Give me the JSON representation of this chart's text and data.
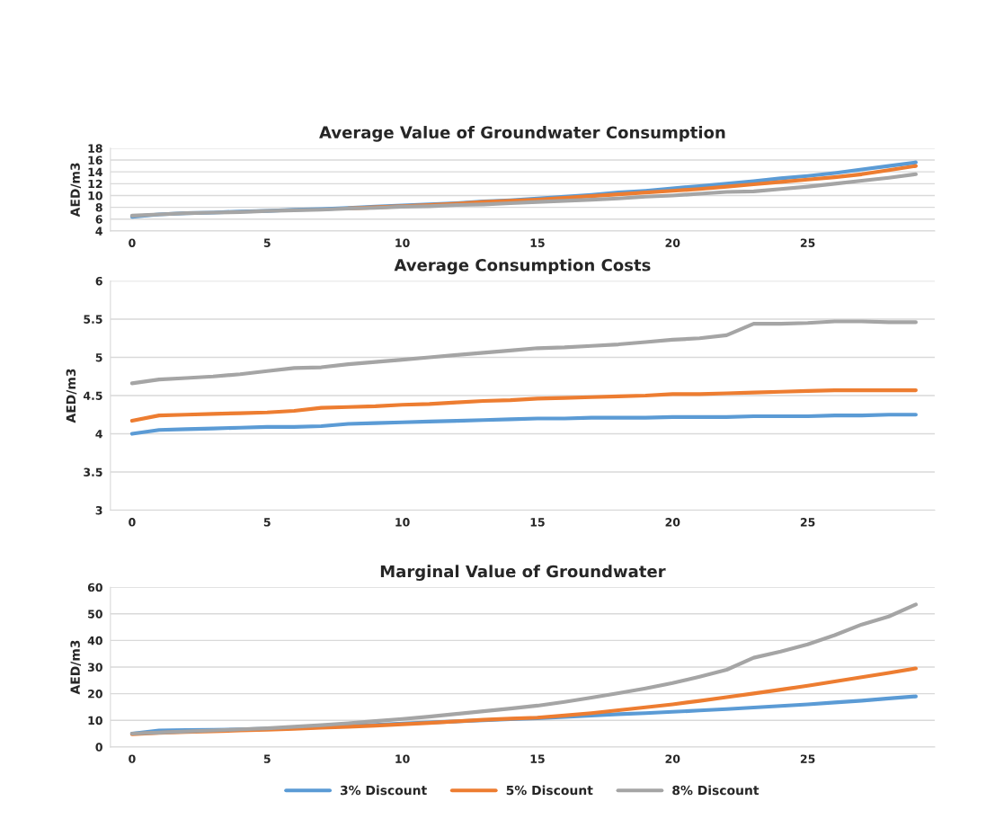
{
  "chart_data": [
    {
      "type": "line",
      "title": "Average Value of Groundwater Consumption",
      "ylabel": "AED/m3",
      "x": [
        0,
        1,
        2,
        3,
        4,
        5,
        6,
        7,
        8,
        9,
        10,
        11,
        12,
        13,
        14,
        15,
        16,
        17,
        18,
        19,
        20,
        21,
        22,
        23,
        24,
        25,
        26,
        27,
        28,
        29
      ],
      "xlim": [
        -0.8,
        29.7
      ],
      "xticks": [
        0,
        5,
        10,
        15,
        20,
        25
      ],
      "ylim": [
        4,
        18
      ],
      "yticks": [
        4,
        6,
        8,
        10,
        12,
        14,
        16,
        18
      ],
      "grid": "y",
      "legend": false,
      "marker": "none",
      "line_style": "solid",
      "series": [
        {
          "color": "#5b9bd5",
          "values": [
            6.4,
            6.8,
            7.0,
            7.1,
            7.3,
            7.4,
            7.6,
            7.7,
            7.9,
            8.1,
            8.3,
            8.5,
            8.7,
            9.0,
            9.2,
            9.5,
            9.8,
            10.1,
            10.5,
            10.8,
            11.2,
            11.6,
            12.0,
            12.4,
            12.9,
            13.3,
            13.8,
            14.4,
            15.0,
            15.6
          ]
        },
        {
          "color": "#ed7d31",
          "values": [
            null,
            null,
            null,
            null,
            null,
            null,
            null,
            null,
            7.8,
            8.0,
            8.2,
            8.4,
            8.6,
            8.9,
            9.1,
            9.3,
            9.6,
            9.9,
            10.2,
            10.5,
            10.8,
            11.1,
            11.5,
            11.9,
            12.3,
            12.7,
            13.1,
            13.6,
            14.3,
            15.0
          ]
        },
        {
          "color": "#a5a5a5",
          "values": [
            6.6,
            6.8,
            7.0,
            7.1,
            7.2,
            7.4,
            7.5,
            7.6,
            7.8,
            7.9,
            8.1,
            8.2,
            8.4,
            8.5,
            8.7,
            8.9,
            9.1,
            9.3,
            9.5,
            9.8,
            10.0,
            10.3,
            10.6,
            10.7,
            11.1,
            11.5,
            12.0,
            12.5,
            13.0,
            13.6
          ]
        }
      ]
    },
    {
      "type": "line",
      "title": "Average Consumption Costs",
      "ylabel": "AED/m3",
      "x": [
        0,
        1,
        2,
        3,
        4,
        5,
        6,
        7,
        8,
        9,
        10,
        11,
        12,
        13,
        14,
        15,
        16,
        17,
        18,
        19,
        20,
        21,
        22,
        23,
        24,
        25,
        26,
        27,
        28,
        29
      ],
      "xlim": [
        -0.8,
        29.7
      ],
      "xticks": [
        0,
        5,
        10,
        15,
        20,
        25
      ],
      "ylim": [
        3,
        6
      ],
      "yticks": [
        3,
        3.5,
        4,
        4.5,
        5,
        5.5,
        6
      ],
      "grid": "y",
      "legend": false,
      "marker": "none",
      "line_style": "solid",
      "series": [
        {
          "color": "#5b9bd5",
          "values": [
            4.0,
            4.05,
            4.06,
            4.07,
            4.08,
            4.09,
            4.09,
            4.1,
            4.13,
            4.14,
            4.15,
            4.16,
            4.17,
            4.18,
            4.19,
            4.2,
            4.2,
            4.21,
            4.21,
            4.21,
            4.22,
            4.22,
            4.22,
            4.23,
            4.23,
            4.23,
            4.24,
            4.24,
            4.25,
            4.25
          ]
        },
        {
          "color": "#ed7d31",
          "values": [
            4.17,
            4.24,
            4.25,
            4.26,
            4.27,
            4.28,
            4.3,
            4.34,
            4.35,
            4.36,
            4.38,
            4.39,
            4.41,
            4.43,
            4.44,
            4.46,
            4.47,
            4.48,
            4.49,
            4.5,
            4.52,
            4.52,
            4.53,
            4.54,
            4.55,
            4.56,
            4.57,
            4.57,
            4.57,
            4.57
          ]
        },
        {
          "color": "#a5a5a5",
          "values": [
            4.66,
            4.71,
            4.73,
            4.75,
            4.78,
            4.82,
            4.86,
            4.87,
            4.91,
            4.94,
            4.97,
            5.0,
            5.03,
            5.06,
            5.09,
            5.12,
            5.13,
            5.15,
            5.17,
            5.2,
            5.23,
            5.25,
            5.29,
            5.44,
            5.44,
            5.45,
            5.47,
            5.47,
            5.46,
            5.46
          ]
        }
      ]
    },
    {
      "type": "line",
      "title": "Marginal Value of Groundwater",
      "ylabel": "AED/m3",
      "x": [
        0,
        1,
        2,
        3,
        4,
        5,
        6,
        7,
        8,
        9,
        10,
        11,
        12,
        13,
        14,
        15,
        16,
        17,
        18,
        19,
        20,
        21,
        22,
        23,
        24,
        25,
        26,
        27,
        28,
        29
      ],
      "xlim": [
        -0.8,
        29.7
      ],
      "xticks": [
        0,
        5,
        10,
        15,
        20,
        25
      ],
      "ylim": [
        0,
        60
      ],
      "yticks": [
        0,
        10,
        20,
        30,
        40,
        50,
        60
      ],
      "grid": "y",
      "legend": "bottom",
      "marker": "none",
      "line_style": "solid",
      "series": [
        {
          "name": "3% Discount",
          "color": "#5b9bd5",
          "values": [
            5,
            6.2,
            6.3,
            6.4,
            6.6,
            6.8,
            7.1,
            7.5,
            7.9,
            8.3,
            8.8,
            9.2,
            null,
            null,
            10.4,
            10.8,
            11.3,
            11.8,
            12.3,
            12.7,
            13.2,
            13.7,
            14.2,
            14.8,
            15.4,
            16,
            16.7,
            17.4,
            18.2,
            19
          ]
        },
        {
          "name": "5% Discount",
          "color": "#ed7d31",
          "values": [
            4.8,
            5.3,
            5.6,
            5.9,
            6.2,
            6.5,
            6.8,
            7.2,
            7.6,
            8.0,
            8.5,
            9.0,
            9.6,
            10.2,
            10.6,
            11.0,
            11.8,
            12.7,
            13.8,
            14.9,
            16,
            17.3,
            18.7,
            20.1,
            21.5,
            23,
            24.6,
            26.2,
            27.8,
            29.5
          ]
        },
        {
          "name": "8% Discount",
          "color": "#a5a5a5",
          "values": [
            5,
            5.4,
            5.8,
            6.2,
            6.6,
            7,
            7.6,
            8.2,
            8.9,
            9.7,
            10.5,
            11.4,
            12.4,
            13.4,
            14.4,
            15.5,
            16.9,
            18.5,
            20.2,
            22,
            24,
            26.4,
            29,
            33.5,
            35.8,
            38.5,
            42,
            46,
            49,
            53.5
          ]
        }
      ]
    }
  ]
}
